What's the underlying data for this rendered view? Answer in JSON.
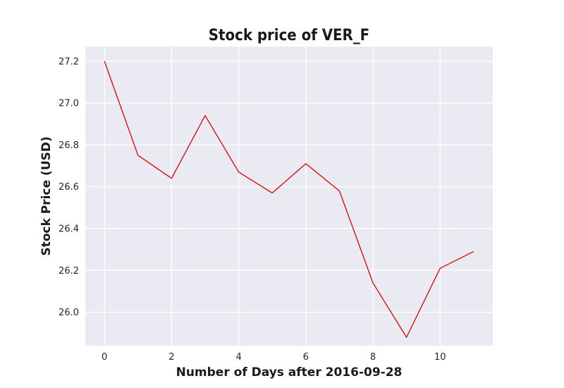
{
  "chart_data": {
    "type": "line",
    "title": "Stock price of VER_F",
    "xlabel": "Number of Days after 2016-09-28",
    "ylabel": "Stock Price (USD)",
    "x": [
      0,
      1,
      2,
      3,
      4,
      5,
      6,
      7,
      8,
      9,
      10,
      11
    ],
    "series": [
      {
        "values": [
          27.2,
          26.75,
          26.64,
          26.94,
          26.67,
          26.57,
          26.71,
          26.58,
          26.14,
          25.88,
          26.21,
          26.29
        ],
        "color": "#e00000"
      }
    ],
    "xlim": [
      -0.57,
      11.57
    ],
    "ylim": [
      25.84,
      27.27
    ],
    "xticks": [
      0,
      2,
      4,
      6,
      8,
      10
    ],
    "xtick_labels": [
      "0",
      "2",
      "4",
      "6",
      "8",
      "10"
    ],
    "yticks": [
      26.0,
      26.2,
      26.4,
      26.6,
      26.8,
      27.0,
      27.2
    ],
    "ytick_labels": [
      "26.0",
      "26.2",
      "26.4",
      "26.6",
      "26.8",
      "27.0",
      "27.2"
    ],
    "grid": true,
    "style": {
      "plot_background": "#eaeaf2",
      "grid_color": "#ffffff"
    }
  }
}
